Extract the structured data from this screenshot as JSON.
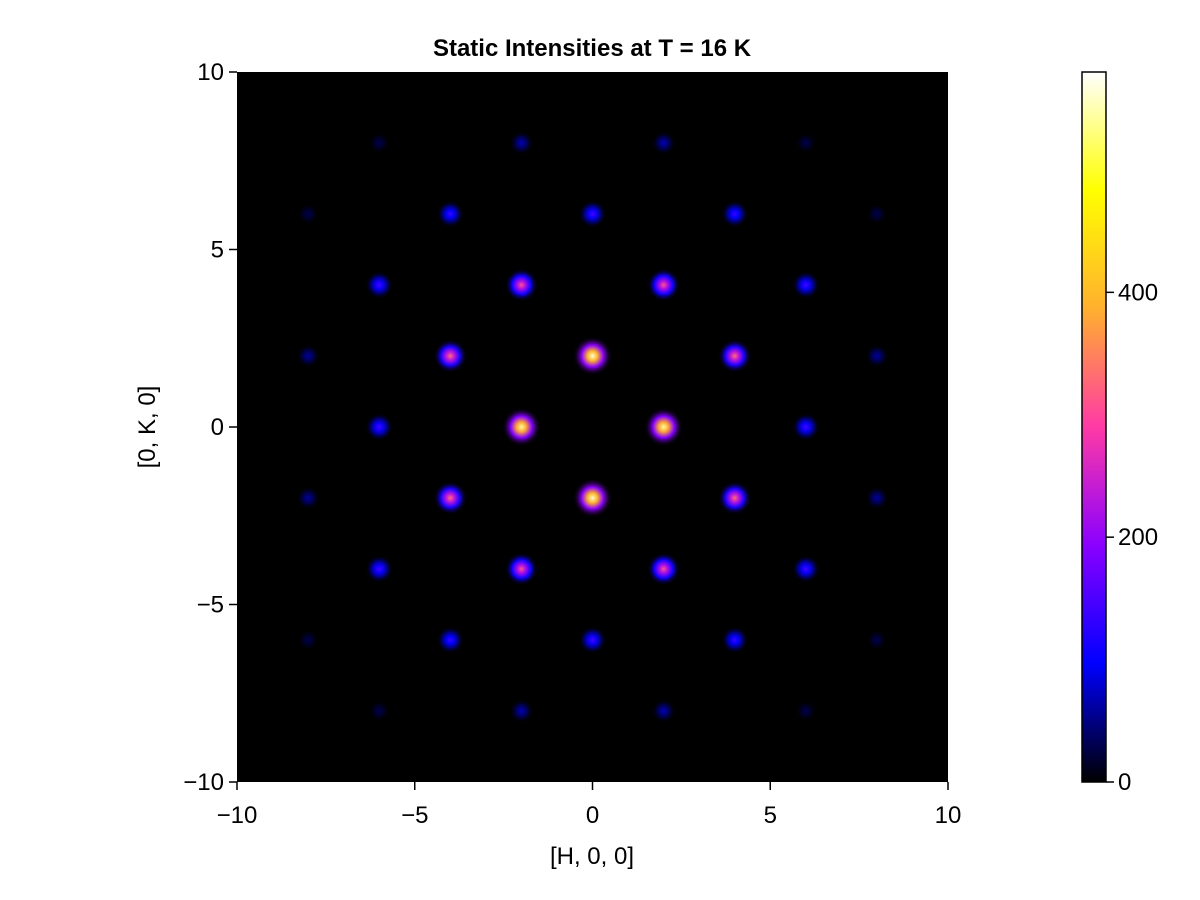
{
  "chart_data": {
    "type": "heatmap",
    "title": "Static Intensities at T = 16 K",
    "xlabel": "[H, 0, 0]",
    "ylabel": "[0, K, 0]",
    "xlim": [
      -10,
      10
    ],
    "ylim": [
      -10,
      10
    ],
    "x_ticks": [
      -10,
      -5,
      0,
      5,
      10
    ],
    "y_ticks": [
      -10,
      -5,
      0,
      5,
      10
    ],
    "x_tick_labels": [
      "−10",
      "−5",
      "0",
      "5",
      "10"
    ],
    "y_tick_labels": [
      "−10",
      "−5",
      "0",
      "5",
      "10"
    ],
    "grid": false,
    "colormap": "gnuplot2",
    "colormap_stops": [
      "#000000",
      "#0000ff",
      "#8a00ff",
      "#ff3aa5",
      "#ffb02e",
      "#ffff00",
      "#ffffff"
    ],
    "background_color": "#000000",
    "colorbar": {
      "range": [
        0,
        580
      ],
      "ticks": [
        0,
        200,
        400
      ],
      "tick_labels": [
        "0",
        "200",
        "400"
      ]
    },
    "peaks": [
      {
        "h": 0,
        "k": 2,
        "intensity": 560
      },
      {
        "h": 0,
        "k": -2,
        "intensity": 560
      },
      {
        "h": -2,
        "k": 0,
        "intensity": 540
      },
      {
        "h": 2,
        "k": 0,
        "intensity": 540
      },
      {
        "h": -4,
        "k": 2,
        "intensity": 330
      },
      {
        "h": 4,
        "k": 2,
        "intensity": 330
      },
      {
        "h": -4,
        "k": -2,
        "intensity": 330
      },
      {
        "h": 4,
        "k": -2,
        "intensity": 330
      },
      {
        "h": -2,
        "k": 4,
        "intensity": 310
      },
      {
        "h": 2,
        "k": 4,
        "intensity": 310
      },
      {
        "h": -2,
        "k": -4,
        "intensity": 310
      },
      {
        "h": 2,
        "k": -4,
        "intensity": 310
      },
      {
        "h": 0,
        "k": 6,
        "intensity": 150
      },
      {
        "h": 0,
        "k": -6,
        "intensity": 150
      },
      {
        "h": -4,
        "k": 6,
        "intensity": 140
      },
      {
        "h": 4,
        "k": 6,
        "intensity": 140
      },
      {
        "h": -4,
        "k": -6,
        "intensity": 140
      },
      {
        "h": 4,
        "k": -6,
        "intensity": 140
      },
      {
        "h": -6,
        "k": 4,
        "intensity": 150
      },
      {
        "h": 6,
        "k": 4,
        "intensity": 150
      },
      {
        "h": -6,
        "k": -4,
        "intensity": 150
      },
      {
        "h": 6,
        "k": -4,
        "intensity": 150
      },
      {
        "h": -6,
        "k": 0,
        "intensity": 150
      },
      {
        "h": 6,
        "k": 0,
        "intensity": 150
      },
      {
        "h": -2,
        "k": 8,
        "intensity": 70
      },
      {
        "h": 2,
        "k": 8,
        "intensity": 70
      },
      {
        "h": -2,
        "k": -8,
        "intensity": 70
      },
      {
        "h": 2,
        "k": -8,
        "intensity": 70
      },
      {
        "h": -6,
        "k": 8,
        "intensity": 30
      },
      {
        "h": 6,
        "k": 8,
        "intensity": 30
      },
      {
        "h": -6,
        "k": -8,
        "intensity": 30
      },
      {
        "h": 6,
        "k": -8,
        "intensity": 30
      },
      {
        "h": -8,
        "k": 6,
        "intensity": 30
      },
      {
        "h": 8,
        "k": 6,
        "intensity": 30
      },
      {
        "h": -8,
        "k": -6,
        "intensity": 30
      },
      {
        "h": 8,
        "k": -6,
        "intensity": 30
      },
      {
        "h": -8,
        "k": 2,
        "intensity": 60
      },
      {
        "h": 8,
        "k": 2,
        "intensity": 60
      },
      {
        "h": -8,
        "k": -2,
        "intensity": 60
      },
      {
        "h": 8,
        "k": -2,
        "intensity": 60
      }
    ]
  }
}
